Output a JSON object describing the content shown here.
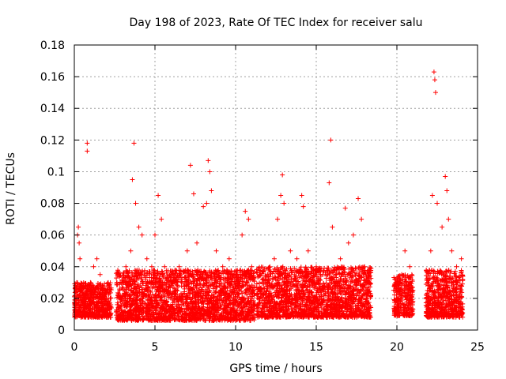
{
  "chart_data": {
    "type": "scatter",
    "title": "Day 198 of 2023, Rate Of TEC Index for receiver salu",
    "xlabel": "GPS time / hours",
    "ylabel": "ROTI / TECUs",
    "xlim": [
      0,
      25
    ],
    "ylim": [
      0,
      0.18
    ],
    "x_ticks": [
      "0",
      "5",
      "10",
      "15",
      "20",
      "25"
    ],
    "y_ticks": [
      "0",
      "0.02",
      "0.04",
      "0.06",
      "0.08",
      "0.1",
      "0.12",
      "0.14",
      "0.16",
      "0.18"
    ],
    "grid": true,
    "marker": "plus",
    "color": "#ff0000",
    "series": [
      {
        "name": "",
        "points": [
          [
            0.1,
            0.02
          ],
          [
            0.15,
            0.03
          ],
          [
            0.2,
            0.06
          ],
          [
            0.25,
            0.065
          ],
          [
            0.3,
            0.055
          ],
          [
            0.35,
            0.045
          ],
          [
            0.4,
            0.025
          ],
          [
            0.5,
            0.018
          ],
          [
            0.6,
            0.015
          ],
          [
            0.7,
            0.022
          ],
          [
            0.8,
            0.118
          ],
          [
            0.8,
            0.113
          ],
          [
            0.9,
            0.02
          ],
          [
            1.0,
            0.03
          ],
          [
            1.2,
            0.04
          ],
          [
            1.4,
            0.045
          ],
          [
            1.6,
            0.035
          ],
          [
            1.8,
            0.025
          ],
          [
            2.0,
            0.02
          ],
          [
            2.2,
            0.015
          ],
          [
            2.8,
            0.02
          ],
          [
            3.0,
            0.03
          ],
          [
            3.2,
            0.04
          ],
          [
            3.5,
            0.05
          ],
          [
            3.6,
            0.095
          ],
          [
            3.7,
            0.118
          ],
          [
            3.8,
            0.08
          ],
          [
            4.0,
            0.065
          ],
          [
            4.2,
            0.06
          ],
          [
            4.5,
            0.045
          ],
          [
            4.8,
            0.04
          ],
          [
            5.0,
            0.06
          ],
          [
            5.2,
            0.085
          ],
          [
            5.4,
            0.07
          ],
          [
            5.6,
            0.04
          ],
          [
            6.0,
            0.03
          ],
          [
            6.5,
            0.04
          ],
          [
            7.0,
            0.05
          ],
          [
            7.2,
            0.104
          ],
          [
            7.4,
            0.086
          ],
          [
            7.6,
            0.055
          ],
          [
            8.0,
            0.078
          ],
          [
            8.2,
            0.08
          ],
          [
            8.3,
            0.107
          ],
          [
            8.4,
            0.1
          ],
          [
            8.5,
            0.088
          ],
          [
            8.8,
            0.05
          ],
          [
            9.2,
            0.04
          ],
          [
            9.6,
            0.045
          ],
          [
            10.0,
            0.035
          ],
          [
            10.4,
            0.06
          ],
          [
            10.6,
            0.075
          ],
          [
            10.8,
            0.07
          ],
          [
            11.0,
            0.04
          ],
          [
            11.5,
            0.02
          ],
          [
            12.0,
            0.03
          ],
          [
            12.4,
            0.045
          ],
          [
            12.6,
            0.07
          ],
          [
            12.8,
            0.085
          ],
          [
            12.9,
            0.098
          ],
          [
            13.0,
            0.08
          ],
          [
            13.4,
            0.05
          ],
          [
            13.8,
            0.045
          ],
          [
            14.1,
            0.085
          ],
          [
            14.2,
            0.078
          ],
          [
            14.5,
            0.05
          ],
          [
            15.0,
            0.04
          ],
          [
            15.4,
            0.035
          ],
          [
            15.8,
            0.093
          ],
          [
            15.9,
            0.12
          ],
          [
            16.0,
            0.065
          ],
          [
            16.5,
            0.045
          ],
          [
            16.8,
            0.077
          ],
          [
            17.0,
            0.055
          ],
          [
            17.3,
            0.06
          ],
          [
            17.6,
            0.083
          ],
          [
            17.8,
            0.07
          ],
          [
            18.0,
            0.04
          ],
          [
            18.3,
            0.03
          ],
          [
            20.0,
            0.02
          ],
          [
            20.3,
            0.035
          ],
          [
            20.5,
            0.05
          ],
          [
            20.8,
            0.04
          ],
          [
            21.0,
            0.025
          ],
          [
            21.9,
            0.03
          ],
          [
            22.1,
            0.05
          ],
          [
            22.2,
            0.085
          ],
          [
            22.3,
            0.163
          ],
          [
            22.35,
            0.158
          ],
          [
            22.4,
            0.15
          ],
          [
            22.5,
            0.08
          ],
          [
            22.8,
            0.065
          ],
          [
            23.0,
            0.097
          ],
          [
            23.1,
            0.088
          ],
          [
            23.2,
            0.07
          ],
          [
            23.4,
            0.05
          ],
          [
            23.7,
            0.04
          ],
          [
            24.0,
            0.045
          ]
        ],
        "band": [
          [
            0.0,
            2.3,
            0.008,
            0.03
          ],
          [
            2.6,
            11.2,
            0.006,
            0.038
          ],
          [
            11.3,
            18.4,
            0.008,
            0.04
          ],
          [
            19.8,
            21.0,
            0.009,
            0.035
          ],
          [
            21.8,
            24.1,
            0.008,
            0.038
          ]
        ]
      }
    ]
  }
}
